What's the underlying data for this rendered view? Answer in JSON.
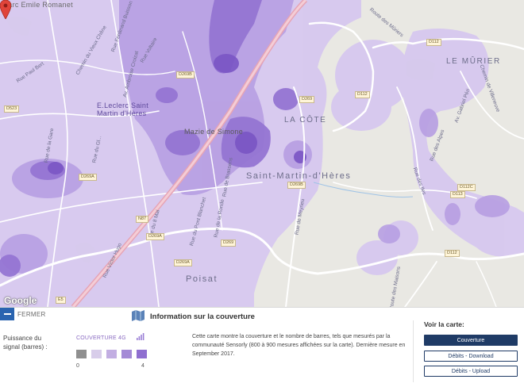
{
  "map": {
    "places": {
      "leclerc": "E.Leclerc Saint Martin d'Hères",
      "mazie": "Mazie de Simone",
      "la_cote": "LA CÔTE",
      "le_murier": "LE MÛRIER",
      "smh": "Saint-Martin-d'Hères",
      "poisat": "Poisat",
      "parc": "Parc Emile Romanet"
    },
    "streets": {
      "paul_bert": "Rue Paul Bert",
      "voltaire": "Rue Voltaire",
      "ferdinand_buisson": "Rue Ferdinand Buisson",
      "rue_de_la_gare": "Rue de la Gare",
      "av_ambroise": "Av. Ambroise Croizat",
      "rue_du_g": "Rue du Gl...",
      "chemin_vieux": "Chemin du Vieux Chêne",
      "route_des_murier": "Route des Mûriers",
      "rue_vaillant": "Rue Victor Hugo",
      "rue_bd": "Rue du 8 Mai",
      "rue_des_maisons": "Route des Maisons",
      "rue_brassens": "Rue de Brassens",
      "rue_pont": "Rue du Pont Blanchet",
      "rue_ronde": "Rue de la Ronde",
      "rue_meyrieu": "Rue de Meyrieu",
      "chemin_villeneuve": "Chemin de Villeneuve",
      "rue_des_alpes": "Rue des Alpes",
      "rue_pte": "Rue des Iles",
      "av_gabriel": "Av. Gabriel Péri"
    },
    "road_tags": {
      "d112_a": "D112",
      "d112_b": "D112",
      "d112_c": "D112",
      "d112d": "D112C",
      "d113": "D113",
      "d269b_a": "D269B",
      "d269b_b": "D269B",
      "d269a_a": "D269A",
      "d269a_b": "D269A",
      "d269": "D269",
      "d269_b": "D269",
      "d523": "D523",
      "n87": "N87",
      "d269a_c": "D269A",
      "e5": "E5"
    },
    "attribution": "Google"
  },
  "panel": {
    "close_label": "FERMER",
    "legend_title": "Puissance du signal (barres) :",
    "coverage_label": "COUVERTURE 4G",
    "scale_min": "0",
    "scale_max": "4",
    "swatch_colors": [
      "#8f8f8f",
      "#d8cdea",
      "#c2aee2",
      "#a48ad6",
      "#8f6fd0"
    ],
    "info_title": "Information sur la couverture",
    "info_text": "Cette carte montre la couverture et le nombre de barres, tels que mesurés par la communauté Sensorly (800 à 900 mesures affichées sur la carte). Dernière mesure en September 2017.",
    "voir_title": "Voir la carte:",
    "btn_couverture": "Couverture",
    "btn_download": "Débits - Download",
    "btn_upload": "Débits - Upload"
  },
  "colors": {
    "accent": "#1f3b66",
    "close_blue": "#2a64b0",
    "coverage_purple": "#9b7fd6"
  }
}
